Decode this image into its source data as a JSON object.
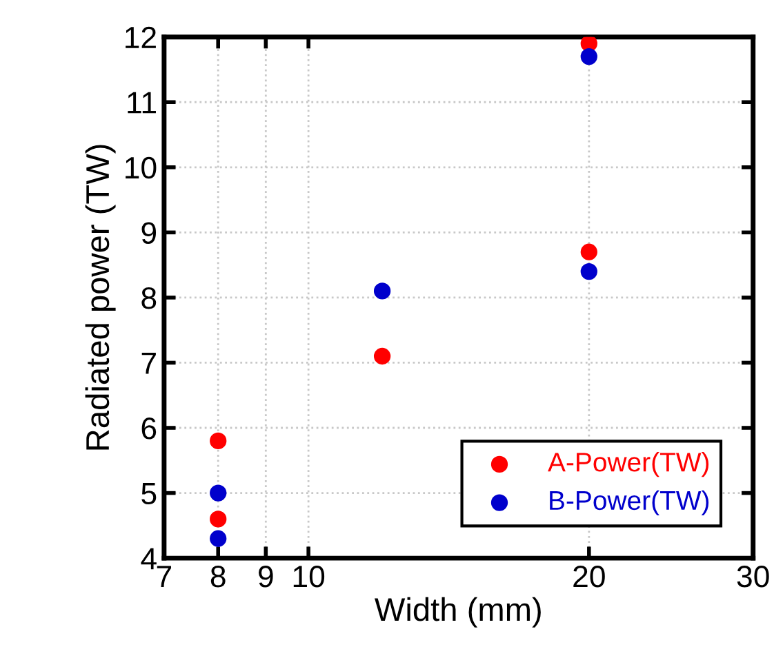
{
  "chart_data": {
    "type": "scatter",
    "xlabel": "Width (mm)",
    "ylabel": "Radiated power (TW)",
    "log": "x",
    "xlim": [
      7,
      30
    ],
    "xticks": [
      7,
      8,
      9,
      10,
      20,
      30
    ],
    "ylim": [
      4,
      12
    ],
    "yticks": [
      4,
      5,
      6,
      7,
      8,
      9,
      10,
      11,
      12
    ],
    "grid": true,
    "legend": "bottom right",
    "marker": "circle",
    "series": [
      {
        "name": "A-Power(TW)",
        "color": "#ff0000",
        "x": [
          8,
          8,
          12,
          20,
          20
        ],
        "values": [
          5.8,
          4.6,
          7.1,
          8.7,
          11.9
        ]
      },
      {
        "name": "B-Power(TW)",
        "color": "#0000cc",
        "x": [
          8,
          8,
          12,
          20,
          20
        ],
        "values": [
          5.0,
          4.3,
          8.1,
          8.4,
          11.7
        ]
      }
    ]
  }
}
